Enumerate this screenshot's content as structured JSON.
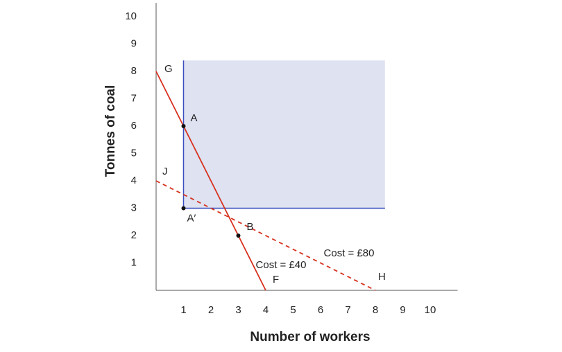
{
  "chart_data": {
    "type": "line",
    "x_label": "Number of workers",
    "y_label": "Tonnes of coal",
    "xlim": [
      0,
      11
    ],
    "ylim": [
      0,
      10.5
    ],
    "xticks": [
      1,
      2,
      3,
      4,
      5,
      6,
      7,
      8,
      9,
      10
    ],
    "yticks": [
      1,
      2,
      3,
      4,
      5,
      6,
      7,
      8,
      9,
      10
    ],
    "grid": false,
    "region": {
      "x": [
        1,
        8.35
      ],
      "y": [
        3,
        8.4
      ],
      "fill": "#dfe2f1",
      "edge_color": "#3a4fbf"
    },
    "lines": [
      {
        "start_label": "G",
        "end_label": "F",
        "x": [
          0,
          4
        ],
        "y": [
          8,
          0
        ],
        "color": "#d6311e",
        "dashed": false
      },
      {
        "start_label": "J",
        "end_label": "H",
        "x": [
          0,
          8
        ],
        "y": [
          4,
          0
        ],
        "color": "#d6311e",
        "dashed": true
      }
    ],
    "points": [
      {
        "label": "A",
        "x": 1,
        "y": 6
      },
      {
        "label": "A′",
        "x": 1,
        "y": 3
      },
      {
        "label": "B",
        "x": 3,
        "y": 2
      }
    ],
    "annotations": [
      "Cost = £40",
      "Cost = £80"
    ]
  }
}
